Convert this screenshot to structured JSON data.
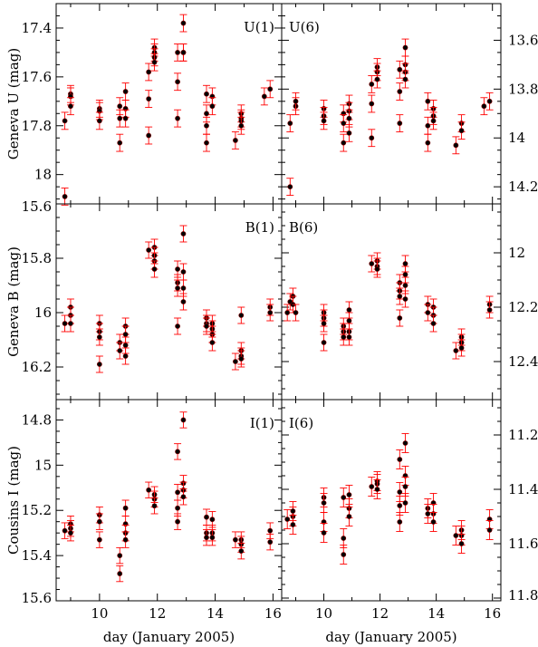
{
  "chart_data": {
    "type": "scatter",
    "xlabel": "day (January 2005)",
    "xlim": [
      8.5,
      16.3
    ],
    "xticks": [
      10,
      12,
      14,
      16
    ],
    "panels": [
      {
        "id": "u1",
        "row": 0,
        "col": 0,
        "label": "U(1)",
        "ylabel": "Geneva U (mag)",
        "ylim": [
          18.12,
          17.3
        ],
        "yticks": [
          17.4,
          17.6,
          17.8,
          18
        ],
        "show_ytick_labels": true,
        "error": 0.035,
        "points": [
          [
            8.8,
            18.09
          ],
          [
            8.8,
            17.78
          ],
          [
            9.0,
            17.67
          ],
          [
            9.0,
            17.68
          ],
          [
            9.0,
            17.72
          ],
          [
            10.0,
            17.73
          ],
          [
            10.0,
            17.74
          ],
          [
            10.0,
            17.78
          ],
          [
            10.7,
            17.72
          ],
          [
            10.7,
            17.77
          ],
          [
            10.7,
            17.87
          ],
          [
            10.9,
            17.66
          ],
          [
            10.9,
            17.73
          ],
          [
            10.9,
            17.77
          ],
          [
            11.7,
            17.58
          ],
          [
            11.7,
            17.69
          ],
          [
            11.7,
            17.84
          ],
          [
            11.9,
            17.48
          ],
          [
            11.9,
            17.5
          ],
          [
            11.9,
            17.52
          ],
          [
            11.9,
            17.54
          ],
          [
            12.7,
            17.5
          ],
          [
            12.7,
            17.62
          ],
          [
            12.7,
            17.77
          ],
          [
            12.9,
            17.38
          ],
          [
            12.9,
            17.5
          ],
          [
            12.9,
            17.5
          ],
          [
            13.7,
            17.67
          ],
          [
            13.7,
            17.75
          ],
          [
            13.7,
            17.8
          ],
          [
            13.7,
            17.87
          ],
          [
            13.9,
            17.68
          ],
          [
            13.9,
            17.72
          ],
          [
            14.7,
            17.86
          ],
          [
            14.9,
            17.75
          ],
          [
            14.9,
            17.77
          ],
          [
            14.9,
            17.78
          ],
          [
            14.9,
            17.8
          ],
          [
            15.7,
            17.68
          ],
          [
            15.9,
            17.65
          ]
        ]
      },
      {
        "id": "u6",
        "row": 0,
        "col": 1,
        "label": "U(6)",
        "ylim": [
          14.27,
          13.45
        ],
        "yticks": [
          13.6,
          13.8,
          14,
          14.2
        ],
        "show_ytick_labels": true,
        "error": 0.035,
        "points": [
          [
            8.8,
            14.2
          ],
          [
            8.8,
            13.94
          ],
          [
            9.0,
            13.87
          ],
          [
            9.0,
            13.85
          ],
          [
            10.0,
            13.88
          ],
          [
            10.0,
            13.91
          ],
          [
            10.0,
            13.93
          ],
          [
            10.7,
            13.9
          ],
          [
            10.7,
            14.02
          ],
          [
            10.7,
            13.94
          ],
          [
            10.9,
            13.86
          ],
          [
            10.9,
            13.89
          ],
          [
            10.9,
            13.92
          ],
          [
            10.9,
            13.98
          ],
          [
            11.7,
            13.78
          ],
          [
            11.7,
            13.86
          ],
          [
            11.7,
            14.0
          ],
          [
            11.9,
            13.71
          ],
          [
            11.9,
            13.73
          ],
          [
            11.9,
            13.76
          ],
          [
            12.7,
            13.72
          ],
          [
            12.7,
            13.81
          ],
          [
            12.7,
            13.94
          ],
          [
            12.9,
            13.63
          ],
          [
            12.9,
            13.7
          ],
          [
            12.9,
            13.73
          ],
          [
            12.9,
            13.76
          ],
          [
            13.7,
            13.85
          ],
          [
            13.7,
            13.95
          ],
          [
            13.7,
            14.02
          ],
          [
            13.9,
            13.88
          ],
          [
            13.9,
            13.91
          ],
          [
            13.9,
            13.93
          ],
          [
            14.7,
            14.03
          ],
          [
            14.9,
            13.94
          ],
          [
            14.9,
            13.97
          ],
          [
            15.7,
            13.87
          ],
          [
            15.9,
            13.85
          ]
        ]
      },
      {
        "id": "b1",
        "row": 1,
        "col": 0,
        "label": "B(1)",
        "ylabel": "Geneva B (mag)",
        "ylim": [
          16.32,
          15.6
        ],
        "yticks": [
          15.6,
          15.8,
          16,
          16.2
        ],
        "show_ytick_labels": true,
        "error": 0.03,
        "points": [
          [
            8.8,
            16.04
          ],
          [
            9.0,
            15.98
          ],
          [
            9.0,
            16.01
          ],
          [
            9.0,
            16.04
          ],
          [
            10.0,
            16.04
          ],
          [
            10.0,
            16.07
          ],
          [
            10.0,
            16.09
          ],
          [
            10.0,
            16.19
          ],
          [
            10.7,
            16.11
          ],
          [
            10.7,
            16.14
          ],
          [
            10.9,
            16.05
          ],
          [
            10.9,
            16.08
          ],
          [
            10.9,
            16.12
          ],
          [
            10.9,
            16.16
          ],
          [
            11.7,
            15.77
          ],
          [
            11.9,
            15.76
          ],
          [
            11.9,
            15.79
          ],
          [
            11.9,
            15.81
          ],
          [
            11.9,
            15.84
          ],
          [
            12.7,
            15.84
          ],
          [
            12.7,
            15.89
          ],
          [
            12.7,
            15.91
          ],
          [
            12.7,
            16.05
          ],
          [
            12.9,
            15.71
          ],
          [
            12.9,
            15.85
          ],
          [
            12.9,
            15.91
          ],
          [
            12.9,
            15.96
          ],
          [
            13.7,
            16.02
          ],
          [
            13.7,
            16.04
          ],
          [
            13.7,
            16.05
          ],
          [
            13.9,
            16.04
          ],
          [
            13.9,
            16.06
          ],
          [
            13.9,
            16.08
          ],
          [
            13.9,
            16.11
          ],
          [
            14.7,
            16.18
          ],
          [
            14.9,
            16.01
          ],
          [
            14.9,
            16.14
          ],
          [
            14.9,
            16.16
          ],
          [
            14.9,
            16.17
          ],
          [
            15.9,
            15.98
          ],
          [
            15.9,
            16.0
          ]
        ]
      },
      {
        "id": "b6",
        "row": 1,
        "col": 1,
        "label": "B(6)",
        "ylim": [
          12.54,
          11.82
        ],
        "yticks": [
          12,
          12.2,
          12.4
        ],
        "show_ytick_labels": true,
        "error": 0.03,
        "points": [
          [
            8.7,
            12.22
          ],
          [
            8.8,
            12.18
          ],
          [
            8.9,
            12.16
          ],
          [
            8.9,
            12.19
          ],
          [
            9.0,
            12.22
          ],
          [
            10.0,
            12.22
          ],
          [
            10.0,
            12.24
          ],
          [
            10.0,
            12.26
          ],
          [
            10.0,
            12.33
          ],
          [
            10.7,
            12.27
          ],
          [
            10.7,
            12.29
          ],
          [
            10.7,
            12.31
          ],
          [
            10.9,
            12.21
          ],
          [
            10.9,
            12.25
          ],
          [
            10.9,
            12.29
          ],
          [
            10.9,
            12.31
          ],
          [
            11.7,
            12.04
          ],
          [
            11.9,
            12.03
          ],
          [
            11.9,
            12.05
          ],
          [
            11.9,
            12.06
          ],
          [
            12.7,
            12.11
          ],
          [
            12.7,
            12.14
          ],
          [
            12.7,
            12.16
          ],
          [
            12.7,
            12.24
          ],
          [
            12.9,
            12.04
          ],
          [
            12.9,
            12.08
          ],
          [
            12.9,
            12.12
          ],
          [
            12.9,
            12.17
          ],
          [
            13.7,
            12.19
          ],
          [
            13.7,
            12.22
          ],
          [
            13.9,
            12.2
          ],
          [
            13.9,
            12.23
          ],
          [
            13.9,
            12.26
          ],
          [
            14.7,
            12.36
          ],
          [
            14.9,
            12.31
          ],
          [
            14.9,
            12.33
          ],
          [
            14.9,
            12.35
          ],
          [
            15.9,
            12.19
          ],
          [
            15.9,
            12.21
          ]
        ]
      },
      {
        "id": "i1",
        "row": 2,
        "col": 0,
        "label": "I(1)",
        "ylabel": "Cousins I (mag)",
        "ylim": [
          15.6,
          14.71
        ],
        "yticks": [
          14.8,
          15,
          15.2,
          15.4,
          15.6
        ],
        "show_ytick_labels": true,
        "error": 0.035,
        "points": [
          [
            8.8,
            15.29
          ],
          [
            9.0,
            15.26
          ],
          [
            9.0,
            15.28
          ],
          [
            9.0,
            15.3
          ],
          [
            10.0,
            15.22
          ],
          [
            10.0,
            15.25
          ],
          [
            10.0,
            15.33
          ],
          [
            10.7,
            15.4
          ],
          [
            10.7,
            15.48
          ],
          [
            10.9,
            15.19
          ],
          [
            10.9,
            15.26
          ],
          [
            10.9,
            15.3
          ],
          [
            10.9,
            15.33
          ],
          [
            11.7,
            15.11
          ],
          [
            11.9,
            15.13
          ],
          [
            11.9,
            15.15
          ],
          [
            11.9,
            15.18
          ],
          [
            12.7,
            14.94
          ],
          [
            12.7,
            15.12
          ],
          [
            12.7,
            15.19
          ],
          [
            12.7,
            15.25
          ],
          [
            12.9,
            14.8
          ],
          [
            12.9,
            15.08
          ],
          [
            12.9,
            15.11
          ],
          [
            12.9,
            15.14
          ],
          [
            13.7,
            15.23
          ],
          [
            13.7,
            15.3
          ],
          [
            13.7,
            15.32
          ],
          [
            13.9,
            15.24
          ],
          [
            13.9,
            15.3
          ],
          [
            13.9,
            15.32
          ],
          [
            14.7,
            15.33
          ],
          [
            14.9,
            15.33
          ],
          [
            14.9,
            15.35
          ],
          [
            14.9,
            15.38
          ],
          [
            15.9,
            15.29
          ],
          [
            15.9,
            15.34
          ]
        ]
      },
      {
        "id": "i6",
        "row": 2,
        "col": 1,
        "label": "I(6)",
        "ylim": [
          11.81,
          11.07
        ],
        "yticks": [
          11.2,
          11.4,
          11.6,
          11.8
        ],
        "show_ytick_labels": true,
        "error": 0.035,
        "points": [
          [
            8.7,
            11.51
          ],
          [
            8.9,
            11.5
          ],
          [
            8.9,
            11.48
          ],
          [
            8.9,
            11.53
          ],
          [
            10.0,
            11.43
          ],
          [
            10.0,
            11.45
          ],
          [
            10.0,
            11.52
          ],
          [
            10.0,
            11.56
          ],
          [
            10.7,
            11.43
          ],
          [
            10.7,
            11.58
          ],
          [
            10.7,
            11.64
          ],
          [
            10.9,
            11.42
          ],
          [
            10.9,
            11.47
          ],
          [
            10.9,
            11.5
          ],
          [
            11.7,
            11.39
          ],
          [
            11.9,
            11.37
          ],
          [
            11.9,
            11.38
          ],
          [
            11.9,
            11.4
          ],
          [
            12.7,
            11.29
          ],
          [
            12.7,
            11.41
          ],
          [
            12.7,
            11.46
          ],
          [
            12.7,
            11.52
          ],
          [
            12.9,
            11.23
          ],
          [
            12.9,
            11.35
          ],
          [
            12.9,
            11.39
          ],
          [
            12.9,
            11.45
          ],
          [
            13.7,
            11.47
          ],
          [
            13.7,
            11.49
          ],
          [
            13.9,
            11.45
          ],
          [
            13.9,
            11.49
          ],
          [
            13.9,
            11.52
          ],
          [
            14.7,
            11.57
          ],
          [
            14.9,
            11.55
          ],
          [
            14.9,
            11.57
          ],
          [
            14.9,
            11.6
          ],
          [
            15.9,
            11.51
          ],
          [
            15.9,
            11.55
          ]
        ]
      }
    ]
  }
}
